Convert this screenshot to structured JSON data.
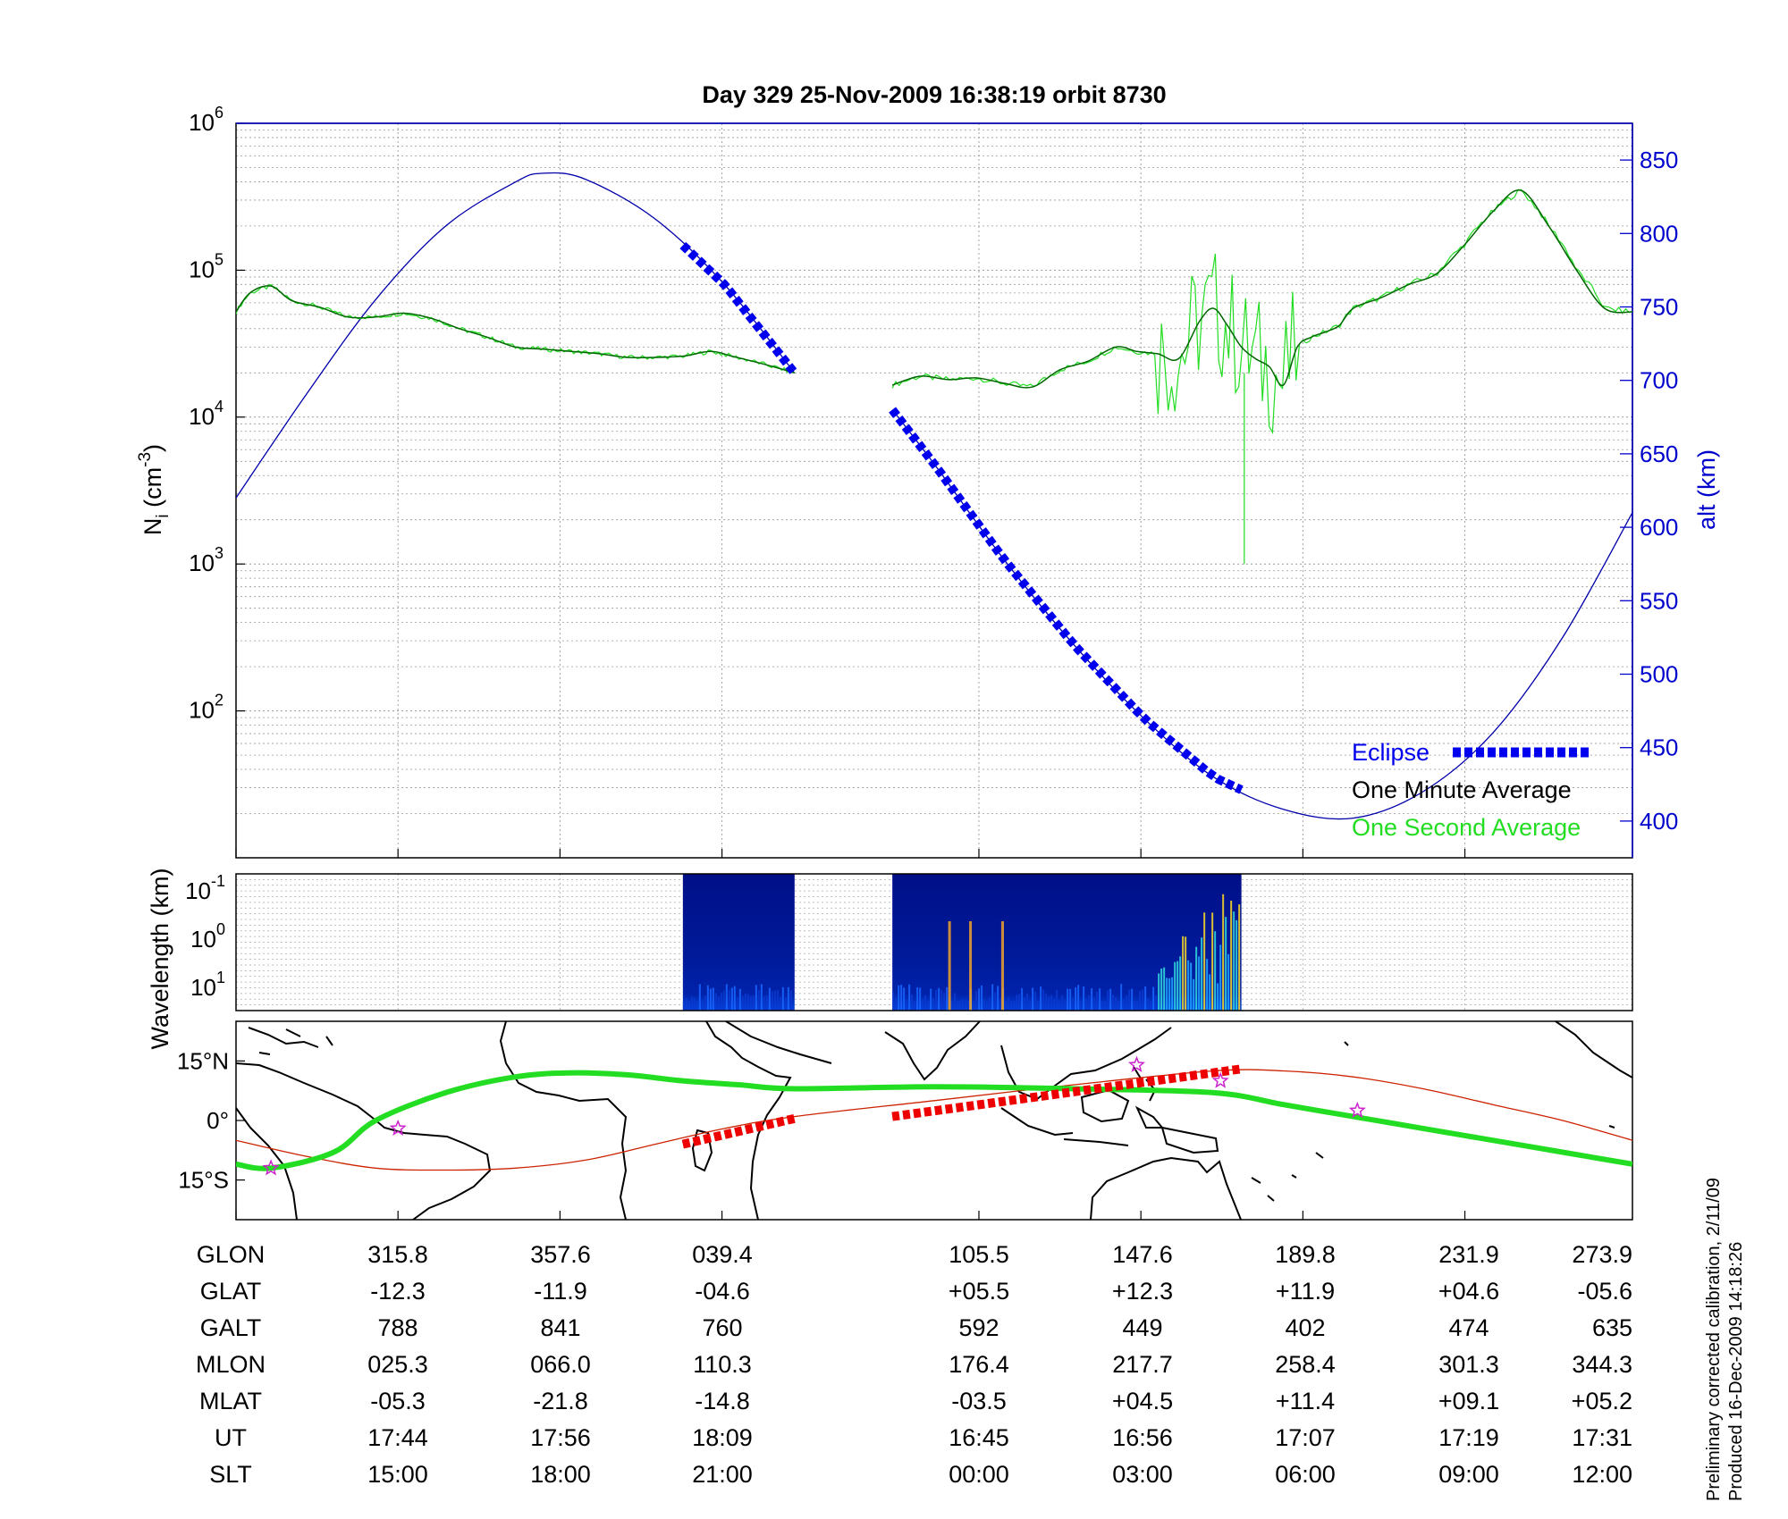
{
  "title": "Day 329  25-Nov-2009 16:38:19   orbit 8730",
  "colors": {
    "altitude": "#0000aa",
    "eclipse": "#0000ee",
    "one_minute": "#006600",
    "one_second": "#22dd22",
    "ground_track": "#22dd22",
    "orbit_line": "#cc2200",
    "eclipse_track": "#ee0000",
    "star": "#cc22cc"
  },
  "chart_data": [
    {
      "name": "density",
      "type": "line",
      "ylabel": "N_i (cm^-3)",
      "ylabel_main": "N",
      "ylabel_sub": "i",
      "ylabel_unit": "(cm",
      "ylabel_exp": "-3",
      "ylabel_close": ")",
      "yscale": "log",
      "ylim": [
        10,
        1000000
      ],
      "yticks": [
        {
          "base": "10",
          "exp": "2",
          "value": 100
        },
        {
          "base": "10",
          "exp": "3",
          "value": 1000
        },
        {
          "base": "10",
          "exp": "4",
          "value": 10000
        },
        {
          "base": "10",
          "exp": "5",
          "value": 100000
        },
        {
          "base": "10",
          "exp": "6",
          "value": 1000000
        }
      ],
      "y2label": "alt (km)",
      "y2lim": [
        375,
        875
      ],
      "y2ticks": [
        400,
        450,
        500,
        550,
        600,
        650,
        700,
        750,
        800,
        850
      ],
      "legend_position": "bottom-right",
      "legend": [
        "Eclipse",
        "One Minute Average",
        "One Second Average"
      ],
      "series": [
        {
          "name": "One Minute Average",
          "x": [
            0,
            0.01,
            0.025,
            0.04,
            0.06,
            0.08,
            0.1,
            0.12,
            0.14,
            0.16,
            0.18,
            0.2,
            0.22,
            0.24,
            0.26,
            0.28,
            0.3,
            0.32,
            0.34,
            0.355,
            0.37,
            0.385,
            0.4
          ],
          "y": [
            52000,
            70000,
            78000,
            62000,
            56000,
            48000,
            48000,
            51000,
            47000,
            40000,
            35000,
            30000,
            29000,
            28000,
            27000,
            25500,
            25500,
            26000,
            28000,
            26000,
            24000,
            22000,
            20000
          ],
          "x2": [
            0.47,
            0.49,
            0.51,
            0.53,
            0.55,
            0.57,
            0.59,
            0.61,
            0.63,
            0.645,
            0.66,
            0.675,
            0.69,
            0.7,
            0.71,
            0.72,
            0.73,
            0.74,
            0.75,
            0.76,
            0.77,
            0.78,
            0.79,
            0.8,
            0.82,
            0.84,
            0.86,
            0.88,
            0.9,
            0.92,
            0.94,
            0.96,
            0.98,
            1.0
          ],
          "y2": [
            16500,
            19000,
            18000,
            18500,
            17000,
            16000,
            21000,
            24000,
            30000,
            28000,
            27000,
            25000,
            45000,
            55000,
            42000,
            30000,
            25000,
            22000,
            16500,
            30000,
            35000,
            38000,
            42000,
            55000,
            65000,
            80000,
            95000,
            150000,
            250000,
            350000,
            200000,
            100000,
            55000,
            52000
          ]
        },
        {
          "name": "altitude",
          "x": [
            0,
            0.05,
            0.1,
            0.15,
            0.2,
            0.22,
            0.25,
            0.3,
            0.35,
            0.4
          ],
          "alt": [
            620,
            690,
            755,
            805,
            835,
            841,
            837,
            810,
            765,
            705
          ],
          "x2": [
            0.47,
            0.5,
            0.55,
            0.6,
            0.65,
            0.7,
            0.75,
            0.8,
            0.85,
            0.9,
            0.95,
            1.0
          ],
          "alt2": [
            680,
            643,
            578,
            520,
            470,
            430,
            408,
            402,
            420,
            460,
            525,
            610
          ]
        },
        {
          "name": "Eclipse",
          "x": [
            0.32,
            0.4
          ],
          "x2": [
            0.47,
            0.72
          ]
        }
      ]
    },
    {
      "name": "spectrogram",
      "type": "heatmap",
      "ylabel": "Wavelength (km)",
      "yticks": [
        {
          "base": "10",
          "exp": "-1"
        },
        {
          "base": "10",
          "exp": "0"
        },
        {
          "base": "10",
          "exp": "1"
        }
      ],
      "blocks": [
        {
          "x": [
            0.32,
            0.4
          ]
        },
        {
          "x": [
            0.47,
            0.72
          ]
        }
      ]
    },
    {
      "name": "map",
      "type": "line",
      "yticks": [
        "15°N",
        "0°",
        "15°S"
      ],
      "ylim": [
        -25,
        25
      ],
      "ground_track": {
        "x": [
          0,
          0.025,
          0.07,
          0.1,
          0.15,
          0.2,
          0.24,
          0.28,
          0.32,
          0.36,
          0.4,
          0.5,
          0.6,
          0.7,
          0.75,
          0.8,
          0.85,
          0.9,
          0.95,
          1.0
        ],
        "lat": [
          -11,
          -12,
          -8,
          0,
          7,
          11,
          12,
          11.5,
          10,
          9,
          8,
          8.5,
          8,
          7,
          4,
          1,
          -2,
          -5,
          -8,
          -11
        ]
      },
      "orbit_line": {
        "x": [
          0,
          0.05,
          0.1,
          0.15,
          0.2,
          0.25,
          0.3,
          0.35,
          0.4,
          0.5,
          0.6,
          0.7,
          0.75,
          0.8,
          0.85,
          0.9,
          0.95,
          1.0
        ],
        "lat": [
          -5,
          -9,
          -12,
          -12.5,
          -12,
          -10,
          -6,
          -2,
          1,
          5,
          9,
          12.5,
          12.5,
          11,
          8,
          4,
          0,
          -5
        ]
      },
      "eclipse_track": [
        {
          "x": [
            0.32,
            0.4
          ],
          "lat": [
            -6,
            0.5
          ]
        },
        {
          "x": [
            0.47,
            0.72
          ],
          "lat": [
            1,
            13
          ]
        }
      ],
      "stars": [
        {
          "x": 0.025,
          "lat": -12
        },
        {
          "x": 0.116,
          "lat": -2
        },
        {
          "x": 0.645,
          "lat": 14
        },
        {
          "x": 0.705,
          "lat": 10
        },
        {
          "x": 0.803,
          "lat": 2.5
        }
      ]
    }
  ],
  "table": {
    "rows": [
      {
        "label": "GLON",
        "values": [
          "315.8",
          "357.6",
          "039.4",
          "105.5",
          "147.6",
          "189.8",
          "231.9",
          "273.9"
        ]
      },
      {
        "label": "GLAT",
        "values": [
          "-12.3",
          "-11.9",
          "-04.6",
          "+05.5",
          "+12.3",
          "+11.9",
          "+04.6",
          "-05.6"
        ]
      },
      {
        "label": "GALT",
        "values": [
          "788",
          "841",
          "760",
          "592",
          "449",
          "402",
          "474",
          "635"
        ]
      },
      {
        "label": "MLON",
        "values": [
          "025.3",
          "066.0",
          "110.3",
          "176.4",
          "217.7",
          "258.4",
          "301.3",
          "344.3"
        ]
      },
      {
        "label": "MLAT",
        "values": [
          "-05.3",
          "-21.8",
          "-14.8",
          "-03.5",
          "+04.5",
          "+11.4",
          "+09.1",
          "+05.2"
        ]
      },
      {
        "label": "UT",
        "values": [
          "17:44",
          "17:56",
          "18:09",
          "16:45",
          "16:56",
          "17:07",
          "17:19",
          "17:31"
        ]
      },
      {
        "label": "SLT",
        "values": [
          "15:00",
          "18:00",
          "21:00",
          "00:00",
          "03:00",
          "06:00",
          "09:00",
          "12:00"
        ]
      }
    ]
  },
  "footer": {
    "line1": "Preliminary corrected calibration, 2/11/09",
    "line2": "Produced 16-Dec-2009 14:18:26"
  }
}
